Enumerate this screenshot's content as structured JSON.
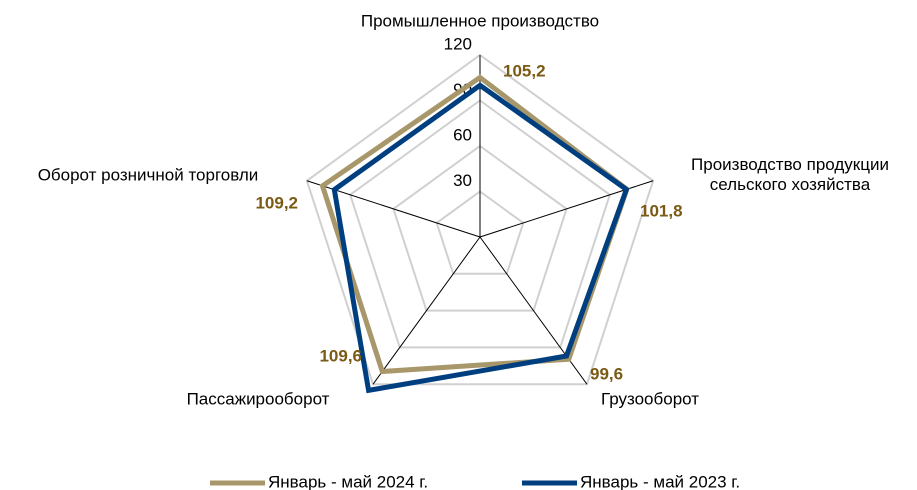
{
  "chart_data": {
    "type": "radar",
    "categories": [
      "Промышленное производство",
      "Производство продукции\nсельского хозяйства",
      "Грузооборот",
      "Пассажирооборот",
      "Оборот розничной торговли"
    ],
    "series": [
      {
        "name": "Январь - май 2024 г.",
        "color": "#a8976a",
        "values": [
          105.2,
          101.8,
          99.6,
          109.6,
          109.2
        ]
      },
      {
        "name": "Январь - май 2023 г.",
        "color": "#003f7f",
        "values": [
          100,
          101.5,
          97,
          125,
          101
        ]
      }
    ],
    "value_labels": [
      "105,2",
      "101,8",
      "99,6",
      "109,6",
      "109,2"
    ],
    "ylim": [
      0,
      120
    ],
    "yticks": [
      30,
      60,
      90,
      120
    ],
    "grid": true,
    "legend": "bottom"
  }
}
